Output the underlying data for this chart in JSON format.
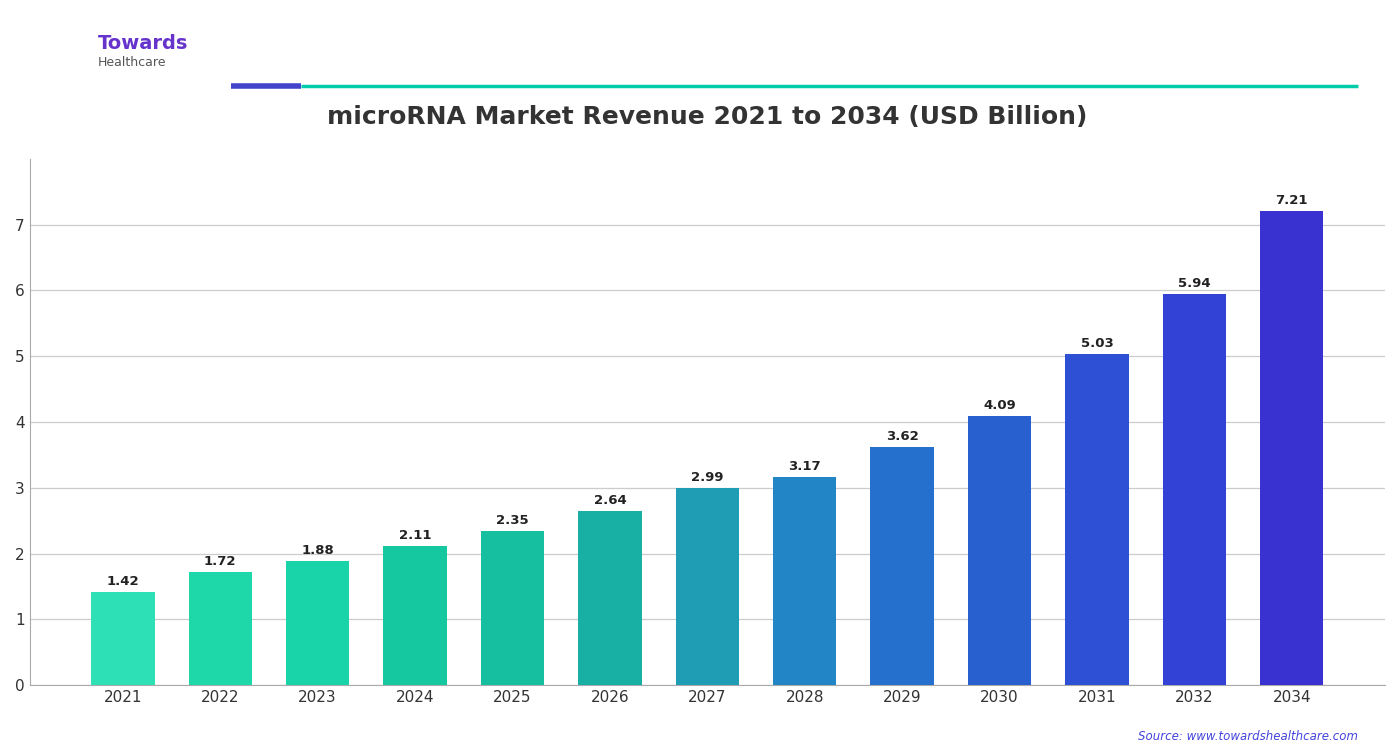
{
  "title": "microRNA Market Revenue 2021 to 2034 (USD Billion)",
  "years": [
    "2021",
    "2022",
    "2023",
    "2024",
    "2025",
    "2026",
    "2027",
    "2028",
    "2029",
    "2030",
    "2031",
    "2032",
    "2034"
  ],
  "values": [
    1.42,
    1.72,
    1.88,
    2.11,
    2.35,
    2.64,
    2.99,
    3.17,
    3.62,
    4.09,
    5.03,
    5.94,
    7.21
  ],
  "bar_colors": [
    "#2de0b5",
    "#1ed8aa",
    "#19d4a8",
    "#15c8a0",
    "#15bfa0",
    "#18b0a5",
    "#1e9db5",
    "#2285c5",
    "#2570cc",
    "#2860d0",
    "#2d50d4",
    "#3242d6",
    "#3a32d0"
  ],
  "value_labels": [
    "1.42",
    "1.72",
    "1.88",
    "2.11",
    "2.35",
    "2.64",
    "2.99",
    "3.17",
    "3.62",
    "4.09",
    "5.03",
    "5.94",
    "7.21"
  ],
  "ylim": [
    0,
    8.0
  ],
  "yticks": [
    0,
    1,
    2,
    3,
    4,
    5,
    6,
    7
  ],
  "bg_color": "#ffffff",
  "plot_bg_color": "#ffffff",
  "bar_width": 0.65,
  "title_color": "#333333",
  "label_color": "#333333",
  "grid_color": "#cccccc",
  "source_text": "Source: www.towardshealthcare.com",
  "source_color": "#4444dd",
  "logo_text": "Towards",
  "logo_subtext": "Healthcare",
  "underline_color1": "#4444cc",
  "underline_color2": "#00ccaa",
  "value_label_color": "#222222"
}
